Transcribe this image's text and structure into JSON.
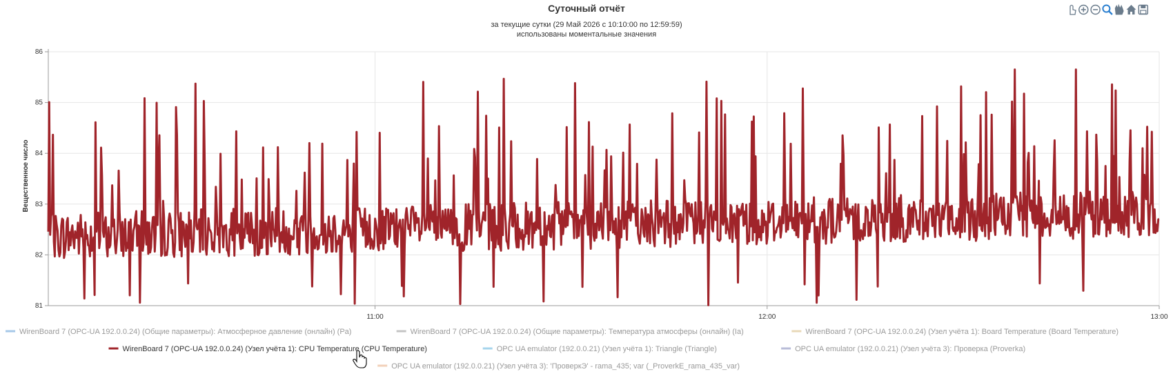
{
  "chart_data": {
    "type": "line",
    "title": "Суточный отчёт",
    "subtitle_line1": "за текущие сутки (29 Май 2026 с 10:10:00 по 12:59:59)",
    "subtitle_line2": "использованы моментальные значения",
    "ylabel": "Вещественное число",
    "ylim": [
      81,
      86
    ],
    "yticks": [
      "81",
      "82",
      "83",
      "84",
      "85",
      "86"
    ],
    "xlim": [
      "10:10",
      "13:00"
    ],
    "xticks": [
      {
        "time": "11:00",
        "label": "11:00"
      },
      {
        "time": "12:00",
        "label": "12:00"
      },
      {
        "time": "13:00",
        "label": "13:00"
      }
    ],
    "grid": true,
    "legend_position": "bottom",
    "series": [
      {
        "name": "WirenBoard 7 (OPC-UA 192.0.0.24) (Общие параметры): Атмосферное давление (онлайн) (Pa)",
        "color": "#a6c8e8",
        "visible": false
      },
      {
        "name": "WirenBoard 7 (OPC-UA 192.0.0.24) (Общие параметры): Температура атмосферы (онлайн) (Ia)",
        "color": "#c4c4c4",
        "visible": false
      },
      {
        "name": "WirenBoard 7 (OPC-UA 192.0.0.24) (Узел учёта 1): Board Temperature (Board Temperature)",
        "color": "#e8d8b8",
        "visible": false
      },
      {
        "name": "WirenBoard 7 (OPC-UA 192.0.0.24) (Узел учёта 1): CPU Temperature (CPU Temperature)",
        "color": "#a0242a",
        "visible": true,
        "summary": {
          "start": "10:10",
          "end": "13:00",
          "baseline_min": 81.9,
          "baseline_max": 83.0,
          "spike_max": 85.65,
          "min": 81.0,
          "last": 82.7
        }
      },
      {
        "name": "OPC UA emulator (192.0.0.21) (Узел учёта 1): Triangle (Triangle)",
        "color": "#a6d4ec",
        "visible": false
      },
      {
        "name": "OPC UA emulator (192.0.0.21) (Узел учёта 3): Проверка (Proverka)",
        "color": "#b8bcd8",
        "visible": false
      },
      {
        "name": "OPC UA emulator (192.0.0.21) (Узел учёта 3): 'ПроверкЭ' - rama_435; var (_ProverkE_rama_435_var)",
        "color": "#f2d0b8",
        "visible": false
      }
    ]
  },
  "toolbar": [
    {
      "icon": "hand-select-icon"
    },
    {
      "icon": "zoom-in-icon"
    },
    {
      "icon": "zoom-out-icon"
    },
    {
      "icon": "zoom-magnifier-icon"
    },
    {
      "icon": "pan-icon"
    },
    {
      "icon": "home-icon"
    },
    {
      "icon": "save-icon"
    }
  ]
}
